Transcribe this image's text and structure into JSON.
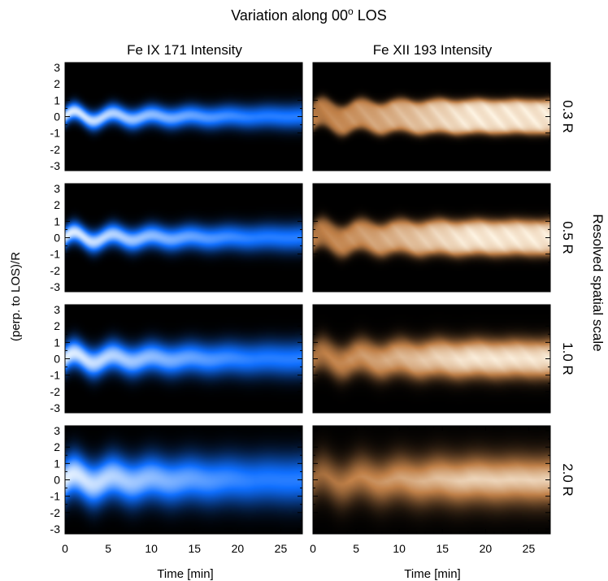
{
  "chart_data": {
    "type": "heatmap",
    "title": "Variation along 00",
    "title_superscript": "o",
    "title_suffix": " LOS",
    "columns": [
      {
        "name": "Fe IX 171 Intensity",
        "colormap": "blue",
        "color_dark": "#000000",
        "color_mid": "#0f6fff",
        "color_peak": "#e6f2ff"
      },
      {
        "name": "Fe XII 193 Intensity",
        "colormap": "copper",
        "color_dark": "#000000",
        "color_mid": "#c08048",
        "color_peak": "#fff6e6"
      }
    ],
    "rows": [
      {
        "label": "0.3 R",
        "resolution": 0.3
      },
      {
        "label": "0.5 R",
        "resolution": 0.5
      },
      {
        "label": "1.0 R",
        "resolution": 1.0
      },
      {
        "label": "2.0 R",
        "resolution": 2.0
      }
    ],
    "xlabel": "Time [min]",
    "ylabel": "(perp. to LOS)/R",
    "right_label": "Resolved spatial scale",
    "xlim": [
      0,
      27.5
    ],
    "ylim": [
      -3.3,
      3.3
    ],
    "x_ticks": [
      0,
      5,
      10,
      15,
      20,
      25
    ],
    "y_ticks": [
      -3,
      -2,
      -1,
      0,
      1,
      2,
      3
    ],
    "oscillation": {
      "period_min": 4.5,
      "amplitude_R": 0.38,
      "damping_time_min": 9.5
    }
  }
}
